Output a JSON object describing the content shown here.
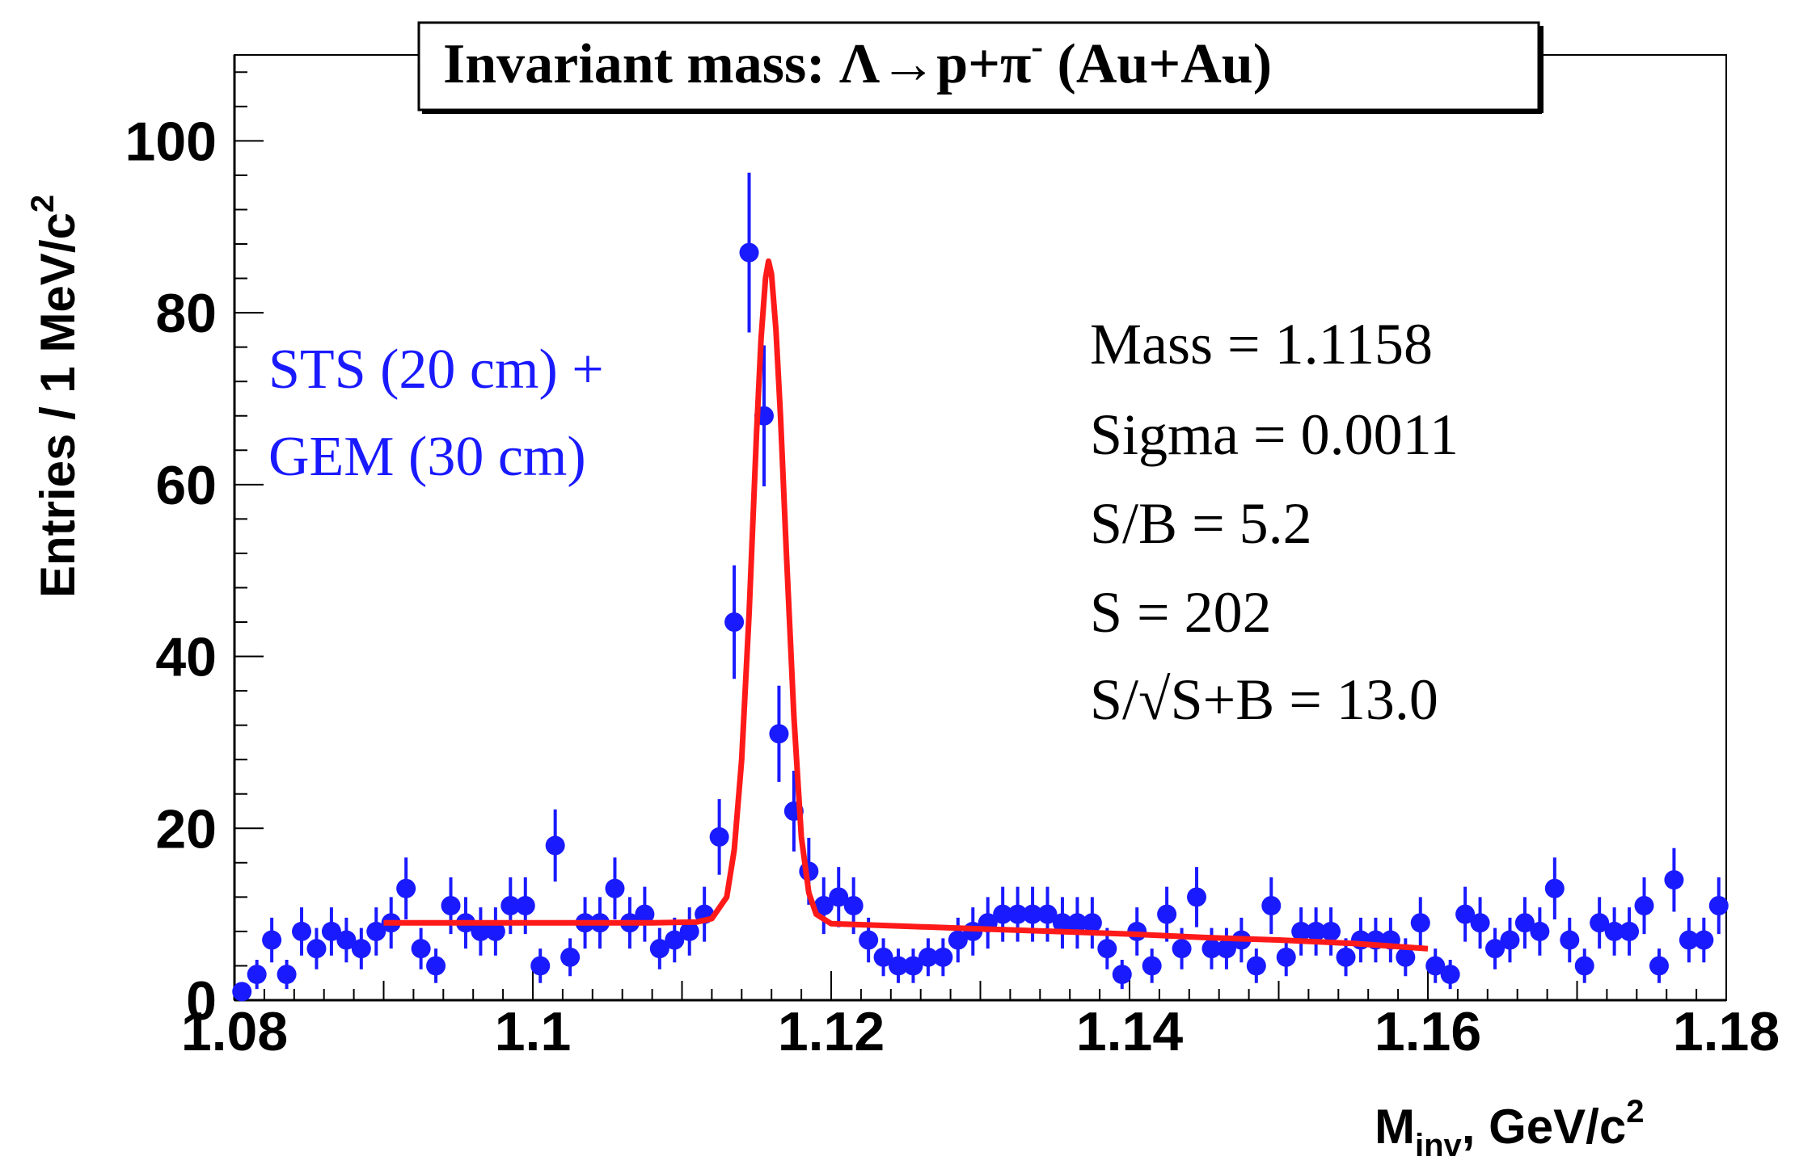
{
  "chart_data": {
    "type": "scatter",
    "title": "Invariant mass:  Λ→p+π⁻ (Au+Au)",
    "title_parts": {
      "main": "Invariant mass:  Λ→p+π",
      "sup": "-",
      "tail": " (Au+Au)"
    },
    "xlabel": "M_inv, GeV/c^2",
    "xlabel_parts": {
      "main": "M",
      "sub": "inv",
      "mid": ", GeV/c",
      "sup": "2"
    },
    "ylabel": "Entries / 1 MeV/c^2",
    "ylabel_parts": {
      "main": "Entries / 1 MeV/c",
      "sup": "2"
    },
    "xlim": [
      1.08,
      1.18
    ],
    "ylim": [
      0,
      110
    ],
    "x_ticks": [
      1.08,
      1.1,
      1.12,
      1.14,
      1.16,
      1.18
    ],
    "x_tick_labels": [
      "1.08",
      "1.1",
      "1.12",
      "1.14",
      "1.16",
      "1.18"
    ],
    "y_ticks": [
      0,
      20,
      40,
      60,
      80,
      100
    ],
    "y_tick_labels": [
      "0",
      "20",
      "40",
      "60",
      "80",
      "100"
    ],
    "grid": false,
    "colors": {
      "data": "#1a1aff",
      "fit": "#ff1a1a",
      "axes": "#000000"
    },
    "detector_label": [
      "STS (20 cm) +",
      "GEM (30 cm)"
    ],
    "stats": [
      "Mass = 1.1158",
      "Sigma = 0.0011",
      "S/B = 5.2",
      "S = 202",
      "S/√S+B = 13.0"
    ],
    "series": [
      {
        "kind": "points",
        "x": [
          1.0805,
          1.0815,
          1.0825,
          1.0835,
          1.0845,
          1.0855,
          1.0865,
          1.0875,
          1.0885,
          1.0895,
          1.0905,
          1.0915,
          1.0925,
          1.0935,
          1.0945,
          1.0955,
          1.0965,
          1.0975,
          1.0985,
          1.0995,
          1.1005,
          1.1015,
          1.1025,
          1.1035,
          1.1045,
          1.1055,
          1.1065,
          1.1075,
          1.1085,
          1.1095,
          1.1105,
          1.1115,
          1.1125,
          1.1135,
          1.1145,
          1.1155,
          1.1165,
          1.1175,
          1.1185,
          1.1195,
          1.1205,
          1.1215,
          1.1225,
          1.1235,
          1.1245,
          1.1255,
          1.1265,
          1.1275,
          1.1285,
          1.1295,
          1.1305,
          1.1315,
          1.1325,
          1.1335,
          1.1345,
          1.1355,
          1.1365,
          1.1375,
          1.1385,
          1.1395,
          1.1405,
          1.1415,
          1.1425,
          1.1435,
          1.1445,
          1.1455,
          1.1465,
          1.1475,
          1.1485,
          1.1495,
          1.1505,
          1.1515,
          1.1525,
          1.1535,
          1.1545,
          1.1555,
          1.1565,
          1.1575,
          1.1585,
          1.1595,
          1.1605,
          1.1615,
          1.1625,
          1.1635,
          1.1645,
          1.1655,
          1.1665,
          1.1675,
          1.1685,
          1.1695,
          1.1705,
          1.1715,
          1.1725,
          1.1735,
          1.1745,
          1.1755,
          1.1765,
          1.1775,
          1.1785,
          1.1795
        ],
        "y": [
          1,
          3,
          7,
          3,
          8,
          6,
          8,
          7,
          6,
          8,
          9,
          13,
          6,
          4,
          11,
          9,
          8,
          8,
          11,
          11,
          4,
          18,
          5,
          9,
          9,
          13,
          9,
          10,
          6,
          7,
          8,
          10,
          19,
          44,
          87,
          68,
          31,
          22,
          15,
          11,
          12,
          11,
          7,
          5,
          4,
          4,
          5,
          5,
          7,
          8,
          9,
          10,
          10,
          10,
          10,
          9,
          9,
          9,
          6,
          3,
          8,
          4,
          10,
          6,
          12,
          6,
          6,
          7,
          4,
          11,
          5,
          8,
          8,
          8,
          5,
          7,
          7,
          7,
          5,
          9,
          4,
          3,
          10,
          9,
          6,
          7,
          9,
          8,
          13,
          7,
          4,
          9,
          8,
          8,
          11,
          4,
          14,
          7,
          7,
          11
        ],
        "err": [
          1.0,
          1.7,
          2.6,
          1.7,
          2.8,
          2.4,
          2.8,
          2.6,
          2.4,
          2.8,
          3.0,
          3.6,
          2.4,
          2.0,
          3.3,
          3.0,
          2.8,
          2.8,
          3.3,
          3.3,
          2.0,
          4.2,
          2.2,
          3.0,
          3.0,
          3.6,
          3.0,
          3.2,
          2.4,
          2.6,
          2.8,
          3.2,
          4.4,
          6.6,
          9.3,
          8.2,
          5.6,
          4.7,
          3.9,
          3.3,
          3.5,
          3.3,
          2.6,
          2.2,
          2.0,
          2.0,
          2.2,
          2.2,
          2.6,
          2.8,
          3.0,
          3.2,
          3.2,
          3.2,
          3.2,
          3.0,
          3.0,
          3.0,
          2.4,
          1.7,
          2.8,
          2.0,
          3.2,
          2.4,
          3.5,
          2.4,
          2.4,
          2.6,
          2.0,
          3.3,
          2.2,
          2.8,
          2.8,
          2.8,
          2.2,
          2.6,
          2.6,
          2.6,
          2.2,
          3.0,
          2.0,
          1.7,
          3.2,
          3.0,
          2.4,
          2.6,
          3.0,
          2.8,
          3.6,
          2.6,
          2.0,
          3.0,
          2.8,
          2.8,
          3.3,
          2.0,
          3.7,
          2.6,
          2.6,
          3.3
        ]
      },
      {
        "kind": "fit",
        "x": [
          1.09,
          1.095,
          1.1,
          1.105,
          1.108,
          1.111,
          1.112,
          1.113,
          1.1135,
          1.114,
          1.1145,
          1.115,
          1.1153,
          1.1156,
          1.1158,
          1.116,
          1.1163,
          1.1166,
          1.117,
          1.1175,
          1.118,
          1.1185,
          1.119,
          1.12,
          1.125,
          1.13,
          1.135,
          1.14,
          1.145,
          1.15,
          1.155,
          1.16
        ],
        "y": [
          9.0,
          9.0,
          9.0,
          9.0,
          9.0,
          9.1,
          9.5,
          12.0,
          17.5,
          28.0,
          45.0,
          66.0,
          77.0,
          84.0,
          86.0,
          84.5,
          78.0,
          68.0,
          52.0,
          33.0,
          19.0,
          12.5,
          10.0,
          8.9,
          8.6,
          8.3,
          8.0,
          7.7,
          7.3,
          7.0,
          6.6,
          6.0
        ]
      }
    ]
  }
}
